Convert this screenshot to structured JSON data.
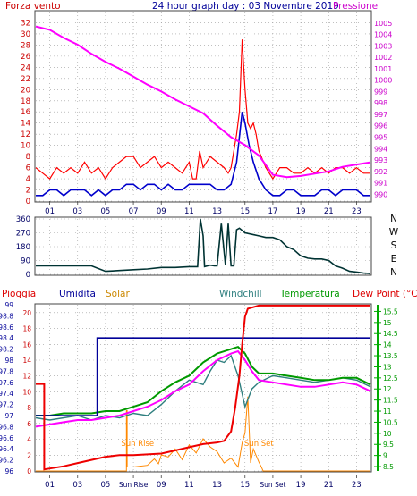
{
  "header": {
    "left_label": "Forza vento",
    "title": "24 hour graph day : 03 Novembre 2019",
    "right_label": "Pressione"
  },
  "colors": {
    "wind": "#ff0000",
    "gust_avg": "#0000cc",
    "pressure": "#ff00ff",
    "direction": "#003333",
    "rain": "#ee0000",
    "humidity": "#000099",
    "solar": "#ff8800",
    "windchill": "#2f7f7f",
    "temperature": "#009900",
    "dewpoint": "#ff00ff",
    "frame": "#444444",
    "grid": "#999999"
  },
  "x_ticks": [
    "01",
    "03",
    "05",
    "07",
    "09",
    "11",
    "13",
    "15",
    "17",
    "19",
    "21",
    "23"
  ],
  "x_ticks_bottom": [
    "01",
    "03",
    "05",
    "Sun Rise",
    "09",
    "11",
    "13",
    "15",
    "Sun Set",
    "19",
    "21",
    "23"
  ],
  "chart_data": [
    {
      "type": "line",
      "name": "wind",
      "x_range": [
        0,
        24
      ],
      "left_axis": {
        "ticks": [
          0,
          2,
          4,
          6,
          8,
          10,
          12,
          14,
          16,
          18,
          20,
          22,
          24,
          26,
          28,
          30,
          32
        ],
        "ylim": [
          0,
          34
        ]
      },
      "right_axis": {
        "ticks": [
          990,
          991,
          992,
          993,
          994,
          995,
          996,
          997,
          998,
          999,
          1000,
          1001,
          1002,
          1003,
          1004,
          1005
        ],
        "ylim": [
          989.4,
          1006
        ]
      },
      "wind_speed": {
        "x": [
          0,
          0.5,
          1,
          1.5,
          2,
          2.5,
          3,
          3.5,
          4,
          4.5,
          5,
          5.5,
          6,
          6.5,
          7,
          7.5,
          8,
          8.5,
          9,
          9.5,
          10,
          10.5,
          11,
          11.25,
          11.5,
          11.75,
          12,
          12.5,
          13,
          13.5,
          13.8,
          14,
          14.2,
          14.4,
          14.6,
          14.8,
          15,
          15.2,
          15.4,
          15.6,
          15.8,
          16,
          16.5,
          17,
          17.5,
          18,
          18.5,
          19,
          19.5,
          20,
          20.5,
          21,
          21.5,
          22,
          22.5,
          23,
          23.5,
          24
        ],
        "values": [
          6,
          5,
          4,
          6,
          5,
          6,
          5,
          7,
          5,
          6,
          4,
          6,
          7,
          8,
          8,
          6,
          7,
          8,
          6,
          7,
          6,
          5,
          7,
          4,
          4,
          9,
          6,
          8,
          7,
          6,
          5,
          6,
          9,
          12,
          16,
          29,
          20,
          14,
          13,
          14,
          12,
          9,
          6,
          4,
          6,
          6,
          5,
          5,
          6,
          5,
          6,
          5,
          6,
          6,
          5,
          6,
          5,
          5
        ]
      },
      "gust_avg": {
        "x": [
          0,
          0.5,
          1,
          1.5,
          2,
          2.5,
          3,
          3.5,
          4,
          4.5,
          5,
          5.5,
          6,
          6.5,
          7,
          7.5,
          8,
          8.5,
          9,
          9.5,
          10,
          10.5,
          11,
          11.5,
          12,
          12.5,
          13,
          13.5,
          14,
          14.4,
          14.8,
          15,
          15.3,
          15.6,
          16,
          16.5,
          17,
          17.5,
          18,
          18.5,
          19,
          19.5,
          20,
          20.5,
          21,
          21.5,
          22,
          22.5,
          23,
          23.5,
          24
        ],
        "values": [
          1,
          1,
          2,
          2,
          1,
          2,
          2,
          2,
          1,
          2,
          1,
          2,
          2,
          3,
          3,
          2,
          3,
          3,
          2,
          3,
          2,
          2,
          3,
          3,
          3,
          3,
          2,
          2,
          3,
          7,
          16,
          14,
          10,
          7,
          4,
          2,
          1,
          1,
          2,
          2,
          1,
          1,
          1,
          2,
          2,
          1,
          2,
          2,
          2,
          1,
          1
        ]
      },
      "pressure": {
        "x": [
          0,
          1,
          2,
          3,
          4,
          5,
          6,
          7,
          8,
          9,
          10,
          11,
          12,
          13,
          14,
          15,
          16,
          17,
          18,
          19,
          20,
          21,
          22,
          23,
          24
        ],
        "values": [
          1004.7,
          1004.4,
          1003.7,
          1003.1,
          1002.3,
          1001.6,
          1001.0,
          1000.3,
          999.6,
          999.0,
          998.3,
          997.7,
          997.1,
          996.0,
          995.0,
          994.3,
          993.4,
          991.7,
          991.5,
          991.6,
          991.8,
          992.0,
          992.4,
          992.6,
          992.8
        ]
      }
    },
    {
      "type": "line",
      "name": "wind_direction",
      "x_range": [
        0,
        24
      ],
      "left_axis": {
        "ticks": [
          0,
          90,
          180,
          270,
          360
        ],
        "ylim": [
          0,
          360
        ]
      },
      "right_labels": [
        "N",
        "W",
        "S",
        "E",
        "N"
      ],
      "direction": {
        "x": [
          0,
          1,
          2,
          3,
          4,
          5,
          6,
          7,
          8,
          9,
          10,
          11,
          11.6,
          11.8,
          12,
          12.1,
          12.5,
          12.8,
          13,
          13.3,
          13.6,
          13.8,
          14,
          14.2,
          14.4,
          14.6,
          15,
          15.5,
          16,
          16.5,
          17,
          17.5,
          18,
          18.5,
          19,
          19.5,
          20,
          20.5,
          21,
          21.5,
          22,
          22.5,
          23,
          23.5,
          24
        ],
        "values": [
          55,
          55,
          55,
          55,
          55,
          20,
          25,
          30,
          35,
          45,
          45,
          50,
          50,
          360,
          250,
          50,
          60,
          55,
          55,
          330,
          60,
          330,
          55,
          55,
          290,
          300,
          270,
          260,
          250,
          240,
          240,
          225,
          180,
          160,
          120,
          105,
          100,
          100,
          90,
          55,
          40,
          20,
          15,
          8,
          5
        ]
      }
    },
    {
      "type": "line",
      "name": "weather",
      "x_range": [
        0,
        24
      ],
      "labels": {
        "rain": "Pioggia",
        "humidity": "Umidita",
        "solar": "Solar",
        "windchill": "Windchill",
        "temperature": "Temperatura",
        "dewpoint": "Dew Point (°C)"
      },
      "left_axis_humidity": {
        "ticks": [
          96,
          96.2,
          96.4,
          96.6,
          96.8,
          97,
          97.2,
          97.4,
          97.6,
          97.8,
          98,
          98.2,
          98.4,
          98.6,
          98.8,
          99
        ],
        "ylim": [
          96,
          99
        ]
      },
      "left_axis_rain": {
        "ticks": [
          0,
          2,
          4,
          6,
          8,
          10,
          12,
          14,
          16,
          18,
          20
        ],
        "ylim": [
          0,
          21
        ]
      },
      "right_axis": {
        "ticks": [
          8.5,
          9,
          9.5,
          10,
          10.5,
          11,
          11.5,
          12,
          12.5,
          13,
          13.5,
          14,
          14.5,
          15,
          15.5
        ],
        "ylim": [
          8.3,
          15.8
        ]
      },
      "annotations": [
        "Sun Rise",
        "Sun Set"
      ],
      "rain": {
        "x": [
          0,
          0.6,
          0.6,
          2,
          3,
          4,
          5,
          6,
          7,
          8,
          9,
          10,
          11,
          12,
          13,
          13.5,
          14,
          14.3,
          14.6,
          14.8,
          15,
          15.2,
          16,
          18,
          20,
          22,
          24
        ],
        "values": [
          11,
          11,
          0.2,
          0.6,
          1,
          1.4,
          1.8,
          2,
          2,
          2.1,
          2.2,
          2.6,
          3,
          3.4,
          3.6,
          3.8,
          5,
          8,
          12,
          16,
          19.5,
          20.5,
          20.9,
          20.9,
          20.9,
          20.9,
          20.9
        ]
      },
      "humidity": {
        "x": [
          0,
          1,
          2,
          3,
          4,
          4.4,
          4.4,
          6,
          8,
          10,
          12,
          14,
          16,
          18,
          20,
          22,
          24
        ],
        "values": [
          97,
          97,
          97,
          97,
          97,
          97,
          98.4,
          98.4,
          98.4,
          98.4,
          98.4,
          98.4,
          98.4,
          98.4,
          98.4,
          98.4,
          98.4
        ]
      },
      "temperature": {
        "x": [
          0,
          1,
          2,
          3,
          4,
          5,
          6,
          7,
          8,
          9,
          10,
          11,
          12,
          13,
          14,
          14.5,
          15,
          15.5,
          16,
          17,
          18,
          19,
          20,
          21,
          22,
          23,
          24
        ],
        "values": [
          10.8,
          10.8,
          10.9,
          10.9,
          10.9,
          11.0,
          11.0,
          11.2,
          11.4,
          11.9,
          12.3,
          12.6,
          13.2,
          13.6,
          13.8,
          13.9,
          13.6,
          13.0,
          12.7,
          12.7,
          12.6,
          12.5,
          12.4,
          12.4,
          12.5,
          12.5,
          12.2
        ]
      },
      "dewpoint": {
        "x": [
          0,
          1,
          2,
          3,
          4,
          5,
          6,
          7,
          8,
          9,
          10,
          11,
          12,
          13,
          14,
          14.5,
          15,
          15.5,
          16,
          17,
          18,
          19,
          20,
          21,
          22,
          23,
          24
        ],
        "values": [
          10.3,
          10.4,
          10.5,
          10.6,
          10.6,
          10.7,
          10.8,
          11.0,
          11.2,
          11.5,
          11.9,
          12.2,
          12.8,
          13.3,
          13.6,
          13.7,
          13.3,
          12.8,
          12.4,
          12.3,
          12.2,
          12.1,
          12.1,
          12.2,
          12.3,
          12.2,
          11.9
        ]
      },
      "windchill": {
        "x": [
          0,
          1,
          2,
          3,
          4,
          5,
          6,
          7,
          8,
          9,
          10,
          11,
          12,
          12.5,
          13,
          13.5,
          14,
          14.5,
          15,
          15.5,
          16,
          17,
          18,
          19,
          20,
          21,
          22,
          23,
          24
        ],
        "values": [
          10.7,
          10.6,
          10.7,
          10.8,
          10.6,
          10.8,
          10.7,
          10.9,
          10.8,
          11.3,
          11.9,
          12.4,
          12.2,
          12.8,
          13.3,
          13.2,
          13.5,
          12.6,
          11.2,
          12.0,
          12.3,
          12.6,
          12.5,
          12.4,
          12.3,
          12.4,
          12.5,
          12.4,
          12.1
        ]
      },
      "solar": {
        "x": [
          0,
          6.5,
          6.5,
          6.55,
          6.55,
          7,
          8,
          8.5,
          8.8,
          9,
          9.5,
          10,
          10.5,
          11,
          11.5,
          12,
          12.5,
          13,
          13.5,
          14,
          14.5,
          14.8,
          15,
          15.2,
          15.4,
          15.6,
          16,
          16.2,
          16.3,
          24
        ],
        "values": [
          0,
          0,
          150,
          150,
          10,
          10,
          14,
          30,
          18,
          40,
          35,
          55,
          28,
          65,
          45,
          80,
          60,
          48,
          20,
          32,
          10,
          70,
          95,
          185,
          20,
          55,
          22,
          8,
          0,
          0
        ]
      }
    }
  ]
}
